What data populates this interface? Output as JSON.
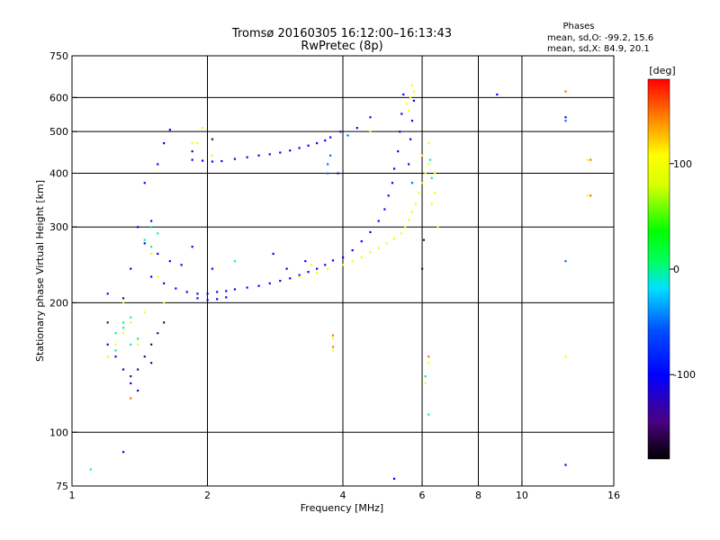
{
  "chart_data": {
    "type": "scatter",
    "title": "Tromsø 20160305 16:12:00–16:13:43",
    "subtitle": "RwPretec (8p)",
    "xlabel": "Frequency [MHz]",
    "ylabel": "Stationary phase Virtual Height [km]",
    "x_scale": "log",
    "y_scale": "log",
    "xlim": [
      1,
      16
    ],
    "ylim": [
      75,
      750
    ],
    "x_ticks": [
      1,
      2,
      4,
      6,
      8,
      10,
      16
    ],
    "y_ticks": [
      75,
      100,
      200,
      300,
      400,
      500,
      600,
      750
    ],
    "x_grid": [
      2,
      4,
      6,
      8,
      10
    ],
    "y_grid": [
      100,
      200,
      300,
      400,
      500,
      600
    ],
    "grid": true,
    "phases_box": {
      "heading": "Phases",
      "line_o": "mean, sd,O: -99.2, 15.6",
      "line_x": "mean, sd,X:  84.9, 20.1"
    },
    "colorbar": {
      "label": "[deg]",
      "ticks": [
        100,
        0,
        -100
      ],
      "range": [
        -180,
        180
      ]
    },
    "series": [
      {
        "points_freq_height_phase": [
          [
            1.85,
            430,
            -100
          ],
          [
            1.95,
            428,
            -100
          ],
          [
            2.05,
            426,
            -100
          ],
          [
            2.15,
            427,
            -100
          ],
          [
            2.3,
            432,
            -100
          ],
          [
            2.45,
            436,
            -100
          ],
          [
            2.6,
            440,
            -100
          ],
          [
            2.75,
            443,
            -100
          ],
          [
            2.9,
            447,
            -100
          ],
          [
            3.05,
            452,
            -100
          ],
          [
            3.2,
            458,
            -100
          ],
          [
            3.35,
            464,
            -100
          ],
          [
            3.5,
            470,
            -100
          ],
          [
            3.65,
            477,
            -100
          ],
          [
            3.75,
            485,
            -100
          ],
          [
            3.95,
            500,
            -100
          ],
          [
            4.3,
            510,
            -100
          ],
          [
            4.6,
            540,
            -100
          ],
          [
            1.5,
            230,
            -100
          ],
          [
            1.6,
            222,
            -100
          ],
          [
            1.7,
            216,
            -100
          ],
          [
            1.8,
            212,
            -100
          ],
          [
            1.9,
            210,
            -100
          ],
          [
            2.0,
            210,
            -100
          ],
          [
            2.1,
            212,
            -100
          ],
          [
            2.2,
            213,
            -100
          ],
          [
            2.3,
            215,
            -100
          ],
          [
            2.45,
            217,
            -100
          ],
          [
            2.6,
            219,
            -100
          ],
          [
            2.75,
            222,
            -100
          ],
          [
            2.9,
            225,
            -100
          ],
          [
            3.05,
            228,
            -100
          ],
          [
            3.2,
            232,
            -100
          ],
          [
            3.35,
            236,
            -100
          ],
          [
            3.5,
            240,
            -100
          ],
          [
            3.65,
            245,
            -100
          ],
          [
            3.8,
            251,
            -100
          ],
          [
            4.0,
            255,
            -100
          ],
          [
            4.2,
            265,
            -100
          ],
          [
            4.4,
            278,
            -100
          ],
          [
            4.6,
            292,
            -100
          ],
          [
            4.8,
            310,
            -100
          ],
          [
            4.95,
            330,
            -100
          ],
          [
            5.05,
            355,
            -100
          ],
          [
            5.15,
            380,
            -100
          ],
          [
            5.2,
            410,
            -100
          ],
          [
            5.3,
            450,
            -100
          ],
          [
            5.35,
            500,
            -100
          ],
          [
            5.4,
            550,
            -100
          ],
          [
            5.45,
            610,
            -100
          ],
          [
            5.6,
            420,
            -100
          ],
          [
            5.65,
            480,
            -100
          ],
          [
            5.7,
            530,
            -100
          ],
          [
            5.75,
            590,
            -100
          ],
          [
            1.9,
            205,
            -100
          ],
          [
            2.0,
            203,
            -100
          ],
          [
            2.1,
            204,
            -100
          ],
          [
            2.2,
            206,
            -100
          ],
          [
            1.55,
            260,
            -100
          ],
          [
            1.65,
            250,
            -100
          ],
          [
            1.75,
            245,
            -100
          ],
          [
            1.45,
            275,
            -100
          ],
          [
            1.4,
            300,
            -100
          ],
          [
            1.35,
            240,
            -100
          ],
          [
            1.5,
            310,
            -100
          ],
          [
            1.55,
            420,
            -100
          ],
          [
            1.6,
            470,
            -100
          ],
          [
            1.65,
            505,
            -100
          ],
          [
            1.45,
            380,
            -100
          ],
          [
            1.2,
            160,
            -100
          ],
          [
            1.25,
            150,
            -100
          ],
          [
            1.3,
            140,
            -100
          ],
          [
            1.35,
            130,
            -100
          ],
          [
            1.4,
            125,
            -100
          ],
          [
            1.3,
            90,
            -100
          ],
          [
            1.2,
            210,
            -100
          ],
          [
            5.2,
            78,
            -100
          ],
          [
            8.8,
            610,
            -100
          ],
          [
            12.5,
            84,
            -100
          ],
          [
            12.5,
            540,
            -100
          ],
          [
            3.3,
            250,
            -100
          ],
          [
            3.0,
            240,
            -100
          ],
          [
            2.8,
            260,
            -100
          ],
          [
            1.85,
            270,
            -100
          ],
          [
            2.05,
            240,
            -100
          ]
        ]
      },
      {
        "points_freq_height_phase": [
          [
            4.0,
            245,
            100
          ],
          [
            4.2,
            250,
            100
          ],
          [
            4.4,
            255,
            100
          ],
          [
            4.6,
            262,
            100
          ],
          [
            4.8,
            268,
            100
          ],
          [
            5.0,
            275,
            100
          ],
          [
            5.2,
            282,
            100
          ],
          [
            5.4,
            290,
            100
          ],
          [
            5.5,
            300,
            100
          ],
          [
            5.6,
            312,
            100
          ],
          [
            5.7,
            325,
            100
          ],
          [
            5.8,
            340,
            100
          ],
          [
            5.9,
            360,
            100
          ],
          [
            6.0,
            380,
            100
          ],
          [
            6.1,
            400,
            100
          ],
          [
            6.2,
            420,
            100
          ],
          [
            6.3,
            390,
            100
          ],
          [
            6.4,
            360,
            100
          ],
          [
            5.6,
            560,
            100
          ],
          [
            5.65,
            600,
            100
          ],
          [
            5.7,
            640,
            100
          ],
          [
            5.55,
            580,
            100
          ],
          [
            5.75,
            620,
            100
          ],
          [
            3.2,
            230,
            100
          ],
          [
            3.5,
            235,
            100
          ],
          [
            3.7,
            240,
            100
          ],
          [
            3.4,
            245,
            100
          ],
          [
            1.95,
            510,
            100
          ],
          [
            1.85,
            470,
            100
          ],
          [
            2.05,
            440,
            100
          ],
          [
            1.9,
            470,
            100
          ],
          [
            4.6,
            500,
            100
          ],
          [
            6.3,
            340,
            100
          ],
          [
            6.5,
            300,
            100
          ],
          [
            6.2,
            470,
            100
          ],
          [
            6.4,
            400,
            100
          ],
          [
            6.0,
            440,
            100
          ],
          [
            1.25,
            160,
            100
          ],
          [
            1.3,
            170,
            100
          ],
          [
            1.2,
            150,
            100
          ],
          [
            1.35,
            180,
            100
          ],
          [
            1.4,
            160,
            100
          ],
          [
            1.3,
            200,
            100
          ],
          [
            1.5,
            260,
            100
          ],
          [
            1.55,
            230,
            100
          ],
          [
            1.45,
            190,
            100
          ],
          [
            1.6,
            200,
            100
          ],
          [
            6.2,
            145,
            100
          ],
          [
            6.1,
            130,
            100
          ],
          [
            12.5,
            620,
            100
          ],
          [
            12.5,
            150,
            100
          ],
          [
            14.0,
            430,
            100
          ],
          [
            14.0,
            355,
            100
          ],
          [
            3.8,
            165,
            100
          ],
          [
            3.8,
            155,
            100
          ]
        ]
      },
      {
        "points_freq_height_phase": [
          [
            1.25,
            170,
            0
          ],
          [
            1.3,
            180,
            0
          ],
          [
            1.35,
            185,
            0
          ],
          [
            1.3,
            175,
            0
          ],
          [
            1.4,
            165,
            0
          ],
          [
            1.45,
            280,
            0
          ],
          [
            1.5,
            270,
            0
          ],
          [
            1.55,
            290,
            0
          ],
          [
            1.1,
            82,
            0
          ],
          [
            1.25,
            155,
            0
          ],
          [
            1.35,
            160,
            0
          ],
          [
            6.2,
            110,
            0
          ],
          [
            6.1,
            135,
            0
          ],
          [
            6.3,
            390,
            0
          ],
          [
            6.25,
            430,
            0
          ],
          [
            1.5,
            300,
            0
          ],
          [
            2.3,
            250,
            0
          ]
        ]
      },
      {
        "points_freq_height_phase": [
          [
            12.5,
            250,
            -50
          ],
          [
            12.5,
            530,
            -50
          ],
          [
            3.7,
            400,
            -50
          ],
          [
            3.7,
            420,
            -50
          ],
          [
            3.75,
            440,
            -50
          ],
          [
            4.1,
            490,
            -50
          ],
          [
            5.7,
            380,
            -50
          ]
        ]
      },
      {
        "points_freq_height_phase": [
          [
            1.35,
            135,
            -150
          ],
          [
            1.4,
            140,
            -150
          ],
          [
            1.45,
            150,
            -150
          ],
          [
            1.5,
            160,
            -150
          ],
          [
            1.55,
            170,
            -150
          ],
          [
            1.6,
            180,
            -150
          ],
          [
            1.5,
            145,
            -150
          ],
          [
            3.9,
            400,
            -150
          ],
          [
            6.0,
            240,
            -150
          ],
          [
            6.05,
            280,
            -150
          ],
          [
            2.05,
            480,
            -150
          ],
          [
            1.85,
            450,
            -150
          ],
          [
            1.3,
            205,
            -150
          ],
          [
            1.2,
            180,
            -150
          ]
        ]
      },
      {
        "points_freq_height_phase": [
          [
            12.5,
            620,
            150
          ],
          [
            14.2,
            430,
            150
          ],
          [
            14.2,
            355,
            150
          ],
          [
            3.8,
            168,
            150
          ],
          [
            3.8,
            158,
            150
          ],
          [
            6.2,
            150,
            150
          ],
          [
            1.35,
            120,
            150
          ]
        ]
      }
    ]
  }
}
